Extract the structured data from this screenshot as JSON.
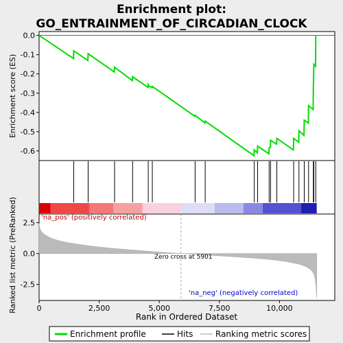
{
  "chart_data": {
    "type": "line",
    "title_line1": "Enrichment plot:",
    "title_line2": "GO_ENTRAINMENT_OF_CIRCADIAN_CLOCK",
    "es_panel": {
      "ylabel": "Enrichment score (ES)",
      "ylim": [
        -0.65,
        0.02
      ],
      "yticks": [
        0.0,
        -0.1,
        -0.2,
        -0.3,
        -0.4,
        -0.5,
        -0.6
      ],
      "ytick_labels": [
        "0.0",
        "-0.1",
        "-0.2",
        "-0.3",
        "-0.4",
        "-0.5",
        "-0.6"
      ],
      "series": {
        "name": "Enrichment profile",
        "color": "#00dd00",
        "x": [
          0,
          1430,
          1440,
          2030,
          2040,
          3130,
          3140,
          3880,
          3890,
          4530,
          4540,
          4580,
          4700,
          4710,
          6480,
          6490,
          6900,
          6910,
          8940,
          8950,
          9080,
          9090,
          9560,
          9570,
          9620,
          9630,
          9880,
          9890,
          10580,
          10590,
          10800,
          10810,
          11020,
          11030,
          11200,
          11210,
          11400,
          11410,
          11420,
          11430,
          11500,
          11510
        ],
        "y": [
          0.0,
          -0.12,
          -0.08,
          -0.13,
          -0.095,
          -0.19,
          -0.165,
          -0.235,
          -0.215,
          -0.27,
          -0.255,
          -0.265,
          -0.27,
          -0.265,
          -0.42,
          -0.415,
          -0.455,
          -0.445,
          -0.625,
          -0.595,
          -0.61,
          -0.575,
          -0.615,
          -0.585,
          -0.58,
          -0.545,
          -0.565,
          -0.535,
          -0.595,
          -0.535,
          -0.555,
          -0.495,
          -0.52,
          -0.44,
          -0.455,
          -0.365,
          -0.385,
          -0.27,
          -0.21,
          -0.15,
          -0.16,
          0.0
        ]
      }
    },
    "hits_panel": {
      "hits": [
        1440,
        2040,
        3140,
        3890,
        4540,
        4710,
        6490,
        6910,
        8950,
        9090,
        9570,
        9630,
        9890,
        10590,
        10810,
        11030,
        11210,
        11410,
        11430,
        11510
      ]
    },
    "heat_bar": {
      "segments": [
        {
          "from": 0,
          "to": 480,
          "color": "#dd0000"
        },
        {
          "from": 480,
          "to": 2100,
          "color": "#f04848"
        },
        {
          "from": 2100,
          "to": 3100,
          "color": "#f57878"
        },
        {
          "from": 3100,
          "to": 4300,
          "color": "#f8a0a0"
        },
        {
          "from": 4300,
          "to": 5900,
          "color": "#fbd0e0"
        },
        {
          "from": 5900,
          "to": 7300,
          "color": "#ddddf6"
        },
        {
          "from": 7300,
          "to": 8500,
          "color": "#bbbbee"
        },
        {
          "from": 8500,
          "to": 9300,
          "color": "#8a8ae2"
        },
        {
          "from": 9300,
          "to": 10900,
          "color": "#5252d2"
        },
        {
          "from": 10900,
          "to": 11550,
          "color": "#1f1fb4"
        }
      ]
    },
    "metric_panel": {
      "ylabel": "Ranked list metric (PreRanked)",
      "ylim": [
        -3.8,
        3.2
      ],
      "yticks": [
        2.5,
        0.0,
        -2.5
      ],
      "ytick_labels": [
        "2.5",
        "0.0",
        "-2.5"
      ],
      "metric_points": [
        [
          0,
          2.45
        ],
        [
          20,
          2.1
        ],
        [
          60,
          1.9
        ],
        [
          150,
          1.65
        ],
        [
          300,
          1.45
        ],
        [
          500,
          1.25
        ],
        [
          800,
          1.05
        ],
        [
          1200,
          0.88
        ],
        [
          1700,
          0.72
        ],
        [
          2300,
          0.57
        ],
        [
          3000,
          0.43
        ],
        [
          3800,
          0.3
        ],
        [
          4600,
          0.18
        ],
        [
          5300,
          0.08
        ],
        [
          5901,
          0.0
        ],
        [
          6600,
          -0.08
        ],
        [
          7400,
          -0.17
        ],
        [
          8200,
          -0.27
        ],
        [
          9000,
          -0.38
        ],
        [
          9700,
          -0.5
        ],
        [
          10300,
          -0.65
        ],
        [
          10800,
          -0.85
        ],
        [
          11100,
          -1.05
        ],
        [
          11300,
          -1.3
        ],
        [
          11420,
          -1.6
        ],
        [
          11480,
          -2.0
        ],
        [
          11520,
          -2.7
        ],
        [
          11550,
          -3.6
        ]
      ],
      "pos_label": "'na_pos' (positively correlated)",
      "neg_label": "'na_neg' (negatively correlated)",
      "zero_cross_label": "Zero cross at 5901",
      "zero_cross": 5901
    },
    "xaxis": {
      "xlabel": "Rank in Ordered Dataset",
      "xlim": [
        0,
        12300
      ],
      "xticks": [
        0,
        2500,
        5000,
        7500,
        10000
      ],
      "xtick_labels": [
        "0",
        "2,500",
        "5,000",
        "7,500",
        "10,000"
      ]
    },
    "legend": {
      "position": "bottom",
      "entries": [
        {
          "label": "Enrichment profile",
          "color": "#00dd00"
        },
        {
          "label": "Hits",
          "color": "#000000"
        },
        {
          "label": "Ranking metric scores",
          "color": "#bbbbbb"
        }
      ]
    }
  }
}
